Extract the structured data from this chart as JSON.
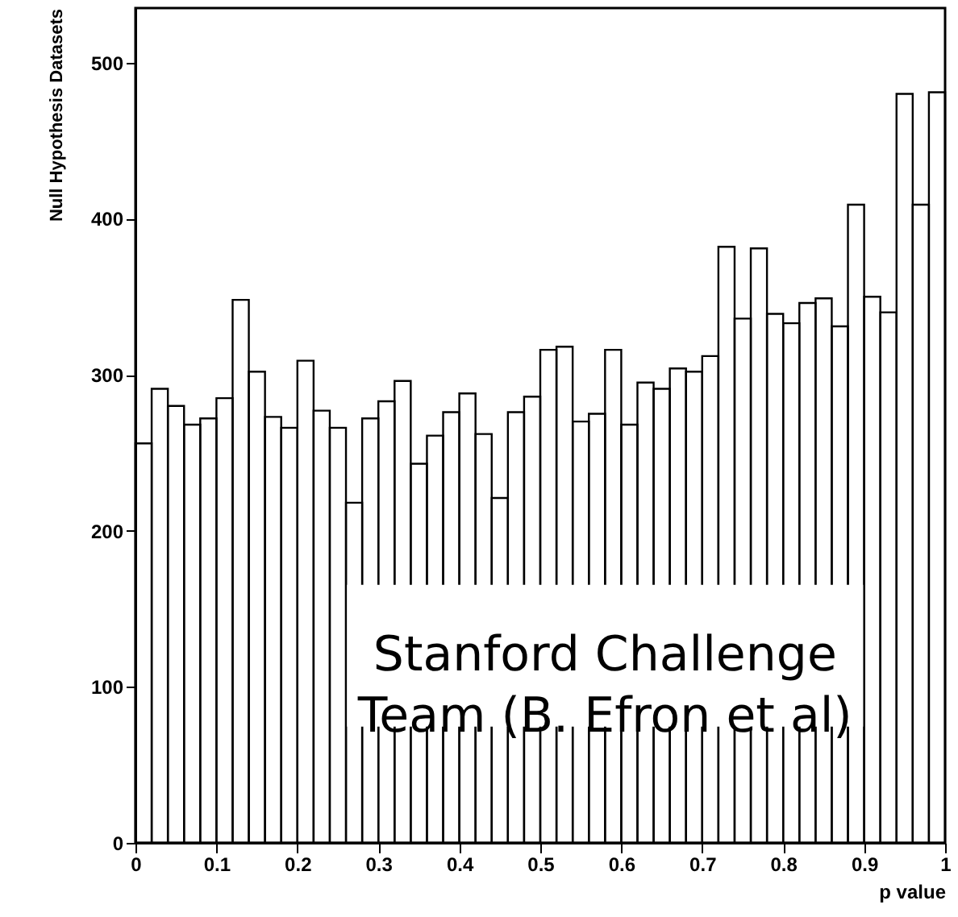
{
  "chart_data": {
    "type": "histogram",
    "xlabel": "p value",
    "ylabel": "Null Hypothesis Datasets",
    "bins": [
      0,
      0.02,
      0.04,
      0.06,
      0.08,
      0.1,
      0.12,
      0.14,
      0.16,
      0.18,
      0.2,
      0.22,
      0.24,
      0.26,
      0.28,
      0.3,
      0.32,
      0.34,
      0.36,
      0.38,
      0.4,
      0.42,
      0.44,
      0.46,
      0.48,
      0.5,
      0.52,
      0.54,
      0.56,
      0.58,
      0.6,
      0.62,
      0.64,
      0.66,
      0.68,
      0.7,
      0.72,
      0.74,
      0.76,
      0.78,
      0.8,
      0.82,
      0.84,
      0.86,
      0.88,
      0.9,
      0.92,
      0.94,
      0.96,
      0.98,
      1
    ],
    "values": [
      256,
      291,
      280,
      268,
      272,
      285,
      348,
      302,
      273,
      266,
      309,
      277,
      266,
      218,
      272,
      283,
      296,
      243,
      261,
      276,
      288,
      262,
      221,
      276,
      286,
      316,
      318,
      270,
      275,
      316,
      268,
      295,
      291,
      304,
      302,
      312,
      382,
      336,
      381,
      339,
      333,
      346,
      349,
      331,
      409,
      350,
      340,
      480,
      409,
      481
    ],
    "color": "#000000",
    "xlim": [
      0,
      1
    ],
    "xticks": [
      0,
      0.1,
      0.2,
      0.3,
      0.4,
      0.5,
      0.6,
      0.7,
      0.8,
      0.9,
      1
    ],
    "ylim": [
      0,
      535
    ],
    "yticks": [
      0,
      100,
      200,
      300,
      400,
      500
    ],
    "grid": false,
    "annotations": [
      {
        "text": "Stanford Challenge\nTeam (B. Efron et al)",
        "x": 0.58,
        "y": 120
      }
    ]
  }
}
